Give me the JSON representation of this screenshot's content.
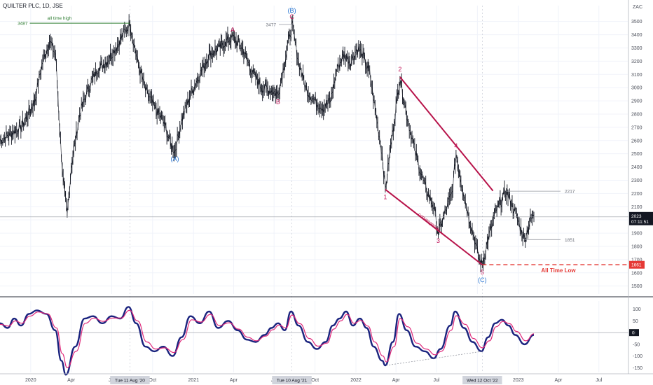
{
  "header": {
    "title": "QUILTER PLC, 1D, JSE"
  },
  "colors": {
    "price": "#131722",
    "wave_red": "#c2185b",
    "wave_blue": "#1e6fd0",
    "channel": "#b7134a",
    "atl_line": "#e53935",
    "osc_main": "#1a237e",
    "osc_signal": "#e0297a",
    "ath": "#2e7d32"
  },
  "chart_data": [
    {
      "type": "line",
      "title": "QUILTER PLC, 1D, JSE",
      "yunit": "ZAC",
      "ylim": [
        1440,
        3620
      ],
      "yticks": [
        1500,
        1600,
        1700,
        1800,
        1900,
        2000,
        2100,
        2200,
        2300,
        2400,
        2500,
        2600,
        2700,
        2800,
        2900,
        3000,
        3100,
        3200,
        3300,
        3400,
        3500
      ],
      "xlim": [
        "2019-10-24",
        "2023-09-04"
      ],
      "xticks": [
        {
          "date": "2020-01-01",
          "label": "2020"
        },
        {
          "date": "2020-04-01",
          "label": "Apr"
        },
        {
          "date": "2020-07-01",
          "label": "Jul"
        },
        {
          "date": "2020-10-01",
          "label": "Oct"
        },
        {
          "date": "2021-01-01",
          "label": "2021"
        },
        {
          "date": "2021-04-01",
          "label": "Apr"
        },
        {
          "date": "2021-07-01",
          "label": "Jul"
        },
        {
          "date": "2021-10-01",
          "label": "Oct"
        },
        {
          "date": "2022-01-01",
          "label": "2022"
        },
        {
          "date": "2022-04-01",
          "label": "Apr"
        },
        {
          "date": "2022-07-01",
          "label": "Jul"
        },
        {
          "date": "2022-10-01",
          "label": "Oct"
        },
        {
          "date": "2023-01-01",
          "label": "2023"
        },
        {
          "date": "2023-04-01",
          "label": "Apr"
        },
        {
          "date": "2023-07-01",
          "label": "Jul"
        }
      ],
      "highlighted_dates": [
        {
          "date": "2020-08-11",
          "label": "Tue 11 Aug '20"
        },
        {
          "date": "2021-08-10",
          "label": "Tue 10 Aug '21"
        },
        {
          "date": "2022-10-12",
          "label": "Wed 12 Oct '22"
        }
      ],
      "price_series": [
        [
          "2019-10-24",
          2600
        ],
        [
          "2019-11-15",
          2650
        ],
        [
          "2019-12-10",
          2700
        ],
        [
          "2019-12-24",
          2780
        ],
        [
          "2020-01-10",
          2900
        ],
        [
          "2020-01-28",
          3200
        ],
        [
          "2020-02-12",
          3350
        ],
        [
          "2020-02-26",
          3250
        ],
        [
          "2020-03-06",
          2700
        ],
        [
          "2020-03-14",
          2300
        ],
        [
          "2020-03-23",
          2030
        ],
        [
          "2020-04-01",
          2400
        ],
        [
          "2020-04-20",
          2800
        ],
        [
          "2020-05-10",
          3000
        ],
        [
          "2020-06-01",
          3150
        ],
        [
          "2020-06-20",
          3200
        ],
        [
          "2020-07-10",
          3300
        ],
        [
          "2020-08-01",
          3430
        ],
        [
          "2020-08-11",
          3487
        ],
        [
          "2020-08-28",
          3200
        ],
        [
          "2020-09-15",
          2980
        ],
        [
          "2020-10-05",
          2850
        ],
        [
          "2020-10-25",
          2750
        ],
        [
          "2020-11-10",
          2580
        ],
        [
          "2020-11-20",
          2520
        ],
        [
          "2020-12-05",
          2750
        ],
        [
          "2020-12-25",
          2950
        ],
        [
          "2021-01-15",
          3100
        ],
        [
          "2021-02-05",
          3250
        ],
        [
          "2021-02-28",
          3300
        ],
        [
          "2021-03-15",
          3350
        ],
        [
          "2021-03-30",
          3380
        ],
        [
          "2021-04-20",
          3300
        ],
        [
          "2021-05-15",
          3100
        ],
        [
          "2021-06-05",
          3000
        ],
        [
          "2021-06-25",
          2980
        ],
        [
          "2021-07-10",
          2950
        ],
        [
          "2021-07-25",
          3200
        ],
        [
          "2021-08-10",
          3477
        ],
        [
          "2021-08-25",
          3200
        ],
        [
          "2021-09-10",
          3000
        ],
        [
          "2021-09-30",
          2900
        ],
        [
          "2021-10-20",
          2850
        ],
        [
          "2021-11-05",
          2900
        ],
        [
          "2021-11-20",
          3150
        ],
        [
          "2021-12-05",
          3250
        ],
        [
          "2021-12-20",
          3200
        ],
        [
          "2022-01-05",
          3300
        ],
        [
          "2022-01-15",
          3250
        ],
        [
          "2022-02-01",
          3100
        ],
        [
          "2022-02-15",
          2800
        ],
        [
          "2022-03-01",
          2500
        ],
        [
          "2022-03-08",
          2230
        ],
        [
          "2022-03-20",
          2550
        ],
        [
          "2022-04-05",
          2950
        ],
        [
          "2022-04-10",
          3080
        ],
        [
          "2022-04-25",
          2800
        ],
        [
          "2022-05-15",
          2500
        ],
        [
          "2022-06-05",
          2250
        ],
        [
          "2022-06-25",
          2100
        ],
        [
          "2022-07-05",
          1900
        ],
        [
          "2022-07-20",
          2050
        ],
        [
          "2022-08-05",
          2200
        ],
        [
          "2022-08-14",
          2500
        ],
        [
          "2022-08-25",
          2300
        ],
        [
          "2022-09-10",
          2050
        ],
        [
          "2022-09-25",
          1850
        ],
        [
          "2022-10-05",
          1700
        ],
        [
          "2022-10-12",
          1661
        ],
        [
          "2022-10-25",
          1850
        ],
        [
          "2022-11-10",
          2050
        ],
        [
          "2022-11-25",
          2150
        ],
        [
          "2022-12-05",
          2217
        ],
        [
          "2022-12-20",
          2100
        ],
        [
          "2023-01-05",
          1950
        ],
        [
          "2023-01-15",
          1851
        ],
        [
          "2023-01-28",
          2000
        ],
        [
          "2023-02-05",
          2023
        ]
      ],
      "annotations": {
        "all_time_high": {
          "label": "all time high",
          "value": "3487",
          "price": 3487,
          "from": "2019-12-30",
          "to": "2020-08-11"
        },
        "high_2021": {
          "value": "3477",
          "price": 3477
        },
        "level_2217": {
          "value": "2217",
          "price": 2217
        },
        "level_1851": {
          "value": "1851",
          "price": 1851
        },
        "current_price": {
          "price": 2023,
          "label": "2023",
          "countdown": "07:11:51"
        },
        "all_time_low": {
          "label": "All Time Low",
          "price_label": "1661",
          "price": 1661
        },
        "convergence": {
          "label": "convergence"
        },
        "waves": [
          {
            "label": "(A)",
            "date": "2020-11-20",
            "price": 2520,
            "color": "blue",
            "pos": "below"
          },
          {
            "label": "A",
            "date": "2021-03-30",
            "price": 3380,
            "color": "red",
            "pos": "above"
          },
          {
            "label": "B",
            "date": "2021-07-10",
            "price": 2950,
            "color": "red",
            "pos": "below"
          },
          {
            "label": "C",
            "date": "2021-08-10",
            "price": 3477,
            "color": "red",
            "pos": "above"
          },
          {
            "label": "(B)",
            "date": "2021-08-10",
            "price": 3477,
            "color": "blue",
            "pos": "above2"
          },
          {
            "label": "1",
            "date": "2022-03-08",
            "price": 2230,
            "color": "red",
            "pos": "below"
          },
          {
            "label": "2",
            "date": "2022-04-10",
            "price": 3080,
            "color": "red",
            "pos": "above"
          },
          {
            "label": "3",
            "date": "2022-07-05",
            "price": 1900,
            "color": "red",
            "pos": "below"
          },
          {
            "label": "4",
            "date": "2022-08-14",
            "price": 2500,
            "color": "red",
            "pos": "above"
          },
          {
            "label": "5",
            "date": "2022-10-12",
            "price": 1661,
            "color": "red",
            "pos": "below"
          },
          {
            "label": "(C)",
            "date": "2022-10-12",
            "price": 1661,
            "color": "blue",
            "pos": "below2"
          }
        ],
        "channel_upper": {
          "from": [
            "2022-04-10",
            3080
          ],
          "to": [
            "2022-11-05",
            2220
          ]
        },
        "channel_lower": {
          "from": [
            "2022-03-08",
            2230
          ],
          "to": [
            "2022-10-12",
            1661
          ]
        }
      }
    },
    {
      "type": "line",
      "title": "",
      "ylim": [
        -170,
        135
      ],
      "yticks": [
        100,
        50,
        0,
        -50,
        -100,
        -150
      ],
      "zero_label": "0",
      "main_series": [
        [
          "2019-10-24",
          40
        ],
        [
          "2019-11-10",
          20
        ],
        [
          "2019-11-25",
          60
        ],
        [
          "2019-12-10",
          30
        ],
        [
          "2019-12-28",
          80
        ],
        [
          "2020-01-15",
          95
        ],
        [
          "2020-02-05",
          80
        ],
        [
          "2020-02-25",
          10
        ],
        [
          "2020-03-10",
          -120
        ],
        [
          "2020-03-20",
          -180
        ],
        [
          "2020-04-10",
          -60
        ],
        [
          "2020-05-01",
          60
        ],
        [
          "2020-05-20",
          70
        ],
        [
          "2020-06-10",
          40
        ],
        [
          "2020-07-01",
          70
        ],
        [
          "2020-07-20",
          60
        ],
        [
          "2020-08-08",
          110
        ],
        [
          "2020-08-25",
          40
        ],
        [
          "2020-09-15",
          -60
        ],
        [
          "2020-10-05",
          -80
        ],
        [
          "2020-10-25",
          -60
        ],
        [
          "2020-11-15",
          -100
        ],
        [
          "2020-12-05",
          -20
        ],
        [
          "2020-12-25",
          70
        ],
        [
          "2021-01-15",
          40
        ],
        [
          "2021-02-05",
          90
        ],
        [
          "2021-02-25",
          20
        ],
        [
          "2021-03-20",
          50
        ],
        [
          "2021-04-10",
          10
        ],
        [
          "2021-05-01",
          -30
        ],
        [
          "2021-05-20",
          -40
        ],
        [
          "2021-06-10",
          -10
        ],
        [
          "2021-06-25",
          20
        ],
        [
          "2021-07-10",
          40
        ],
        [
          "2021-07-25",
          10
        ],
        [
          "2021-08-08",
          90
        ],
        [
          "2021-08-25",
          30
        ],
        [
          "2021-09-15",
          -40
        ],
        [
          "2021-10-05",
          -70
        ],
        [
          "2021-10-25",
          -40
        ],
        [
          "2021-11-10",
          30
        ],
        [
          "2021-11-25",
          60
        ],
        [
          "2021-12-10",
          90
        ],
        [
          "2021-12-25",
          30
        ],
        [
          "2022-01-10",
          60
        ],
        [
          "2022-01-25",
          20
        ],
        [
          "2022-02-10",
          -60
        ],
        [
          "2022-03-01",
          -120
        ],
        [
          "2022-03-08",
          -140
        ],
        [
          "2022-03-25",
          -40
        ],
        [
          "2022-04-08",
          80
        ],
        [
          "2022-04-25",
          10
        ],
        [
          "2022-05-15",
          -60
        ],
        [
          "2022-06-05",
          -80
        ],
        [
          "2022-06-25",
          -110
        ],
        [
          "2022-07-10",
          -70
        ],
        [
          "2022-08-01",
          30
        ],
        [
          "2022-08-12",
          90
        ],
        [
          "2022-09-01",
          20
        ],
        [
          "2022-09-20",
          -40
        ],
        [
          "2022-10-10",
          -80
        ],
        [
          "2022-10-25",
          -20
        ],
        [
          "2022-11-10",
          40
        ],
        [
          "2022-11-25",
          55
        ],
        [
          "2022-12-10",
          30
        ],
        [
          "2022-12-25",
          -10
        ],
        [
          "2023-01-15",
          -50
        ],
        [
          "2023-02-05",
          -10
        ]
      ],
      "signal_series": [
        [
          "2019-10-24",
          35
        ],
        [
          "2019-11-12",
          28
        ],
        [
          "2019-11-28",
          50
        ],
        [
          "2019-12-12",
          40
        ],
        [
          "2019-12-30",
          70
        ],
        [
          "2020-01-18",
          88
        ],
        [
          "2020-02-08",
          80
        ],
        [
          "2020-02-28",
          20
        ],
        [
          "2020-03-12",
          -90
        ],
        [
          "2020-03-23",
          -150
        ],
        [
          "2020-04-12",
          -80
        ],
        [
          "2020-05-03",
          40
        ],
        [
          "2020-05-22",
          62
        ],
        [
          "2020-06-12",
          48
        ],
        [
          "2020-07-03",
          62
        ],
        [
          "2020-07-22",
          62
        ],
        [
          "2020-08-10",
          95
        ],
        [
          "2020-08-28",
          50
        ],
        [
          "2020-09-18",
          -40
        ],
        [
          "2020-10-08",
          -70
        ],
        [
          "2020-10-28",
          -65
        ],
        [
          "2020-11-18",
          -85
        ],
        [
          "2020-12-08",
          -30
        ],
        [
          "2020-12-28",
          55
        ],
        [
          "2021-01-18",
          45
        ],
        [
          "2021-02-08",
          78
        ],
        [
          "2021-02-28",
          30
        ],
        [
          "2021-03-22",
          42
        ],
        [
          "2021-04-12",
          15
        ],
        [
          "2021-05-03",
          -20
        ],
        [
          "2021-05-22",
          -35
        ],
        [
          "2021-06-12",
          -15
        ],
        [
          "2021-06-28",
          12
        ],
        [
          "2021-07-12",
          32
        ],
        [
          "2021-07-28",
          20
        ],
        [
          "2021-08-10",
          75
        ],
        [
          "2021-08-28",
          38
        ],
        [
          "2021-09-18",
          -25
        ],
        [
          "2021-10-08",
          -58
        ],
        [
          "2021-10-28",
          -45
        ],
        [
          "2021-11-12",
          15
        ],
        [
          "2021-11-28",
          50
        ],
        [
          "2021-12-12",
          78
        ],
        [
          "2021-12-28",
          40
        ],
        [
          "2022-01-12",
          52
        ],
        [
          "2022-01-28",
          28
        ],
        [
          "2022-02-12",
          -40
        ],
        [
          "2022-03-03",
          -100
        ],
        [
          "2022-03-10",
          -125
        ],
        [
          "2022-03-28",
          -60
        ],
        [
          "2022-04-10",
          60
        ],
        [
          "2022-04-28",
          25
        ],
        [
          "2022-05-18",
          -45
        ],
        [
          "2022-06-08",
          -70
        ],
        [
          "2022-06-28",
          -95
        ],
        [
          "2022-07-12",
          -80
        ],
        [
          "2022-08-03",
          10
        ],
        [
          "2022-08-14",
          72
        ],
        [
          "2022-09-04",
          35
        ],
        [
          "2022-09-22",
          -25
        ],
        [
          "2022-10-12",
          -65
        ],
        [
          "2022-10-28",
          -35
        ],
        [
          "2022-11-12",
          25
        ],
        [
          "2022-11-28",
          48
        ],
        [
          "2022-12-12",
          38
        ],
        [
          "2022-12-28",
          5
        ],
        [
          "2023-01-18",
          -35
        ],
        [
          "2023-02-05",
          -5
        ]
      ],
      "divergence_line": {
        "from": [
          "2022-03-10",
          -140
        ],
        "to": [
          "2022-10-12",
          -80
        ]
      }
    }
  ]
}
